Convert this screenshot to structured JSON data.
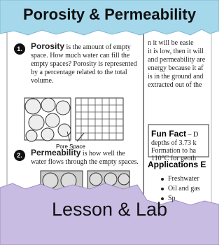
{
  "header": {
    "title": "Porosity & Permeability"
  },
  "left_page": {
    "section1": {
      "number": "1.",
      "term": "Porosity",
      "text": "is the amount of empty space. How much water can fill the empty spaces? Porosity is represented by a percentage related to the total volume.",
      "figure_label": "Pore Space"
    },
    "section2": {
      "number": "2.",
      "term": "Permeability",
      "text": "is how well the water flows through the empty spaces."
    }
  },
  "right_page": {
    "lines": [
      "n it will be easie",
      "it is low, then it will",
      "and permeability are",
      "energy because it af",
      "is in the ground and",
      "extracted out of the"
    ],
    "fun_fact": {
      "title": "Fun Fact",
      "lines": [
        "– D",
        "depths of 3.73 k",
        "Formation to ha",
        "110°C for geoth"
      ]
    },
    "applications": {
      "title": "Applications E",
      "items": [
        "Freshwater",
        "Oil and gas",
        "Sp"
      ]
    }
  },
  "footer": {
    "label": "Lesson & Lab"
  }
}
